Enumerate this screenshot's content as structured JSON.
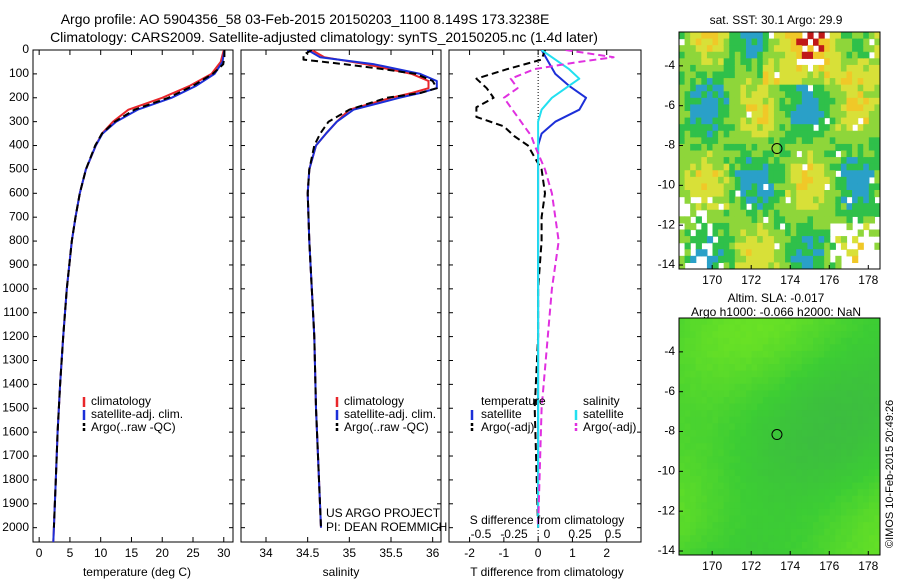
{
  "header": {
    "title_line1": "Argo profile: AO 5904356_58 03-Feb-2015 20150203_1100 8.149S 173.3238E",
    "title_line2": "Climatology: CARS2009. Satellite-adjusted climatology: synTS_20150205.nc (1.4d later)"
  },
  "colors": {
    "climatology": "#e8262a",
    "satellite": "#1c2fd8",
    "argo": "#000000",
    "satellite_salinity": "#22e0f0",
    "argo_salinity": "#e030e0"
  },
  "chart_data": [
    {
      "type": "line",
      "name": "temperature_profile",
      "xlabel": "temperature (deg C)",
      "xlim": [
        -1,
        31.5
      ],
      "ylim": [
        2060,
        0
      ],
      "xticks": [
        0,
        5,
        10,
        15,
        20,
        25,
        30
      ],
      "yticks": [
        0,
        100,
        200,
        300,
        400,
        500,
        600,
        700,
        800,
        900,
        1000,
        1100,
        1200,
        1300,
        1400,
        1500,
        1600,
        1700,
        1800,
        1900,
        2000
      ],
      "legend": [
        "climatology",
        "satellite-adj. clim.",
        "Argo(..raw -QC)"
      ],
      "series": [
        {
          "name": "climatology",
          "depth": [
            0,
            50,
            100,
            150,
            200,
            250,
            300,
            350,
            400,
            500,
            600,
            700,
            800,
            1000,
            1200,
            1400,
            1600,
            1800,
            2000,
            2060
          ],
          "values": [
            30,
            29.5,
            28,
            24.5,
            20,
            14.5,
            12,
            10.2,
            9.2,
            7.6,
            6.6,
            5.9,
            5.3,
            4.5,
            3.9,
            3.4,
            3,
            2.7,
            2.4,
            2.3
          ]
        },
        {
          "name": "satellite-adj. clim.",
          "depth": [
            0,
            50,
            100,
            150,
            200,
            250,
            300,
            350,
            400,
            500,
            600,
            700,
            800,
            1000,
            1200,
            1400,
            1600,
            1800,
            2000,
            2060
          ],
          "values": [
            30.1,
            29.8,
            28.5,
            25.5,
            21.5,
            16,
            12.5,
            10.3,
            9.2,
            7.6,
            6.6,
            5.9,
            5.3,
            4.5,
            3.9,
            3.4,
            3,
            2.7,
            2.4,
            2.3
          ]
        },
        {
          "name": "Argo(..raw -QC)",
          "depth": [
            0,
            30,
            60,
            100,
            150,
            200,
            250,
            300,
            350,
            400,
            500,
            600,
            700,
            800,
            1000,
            1200,
            1400,
            1600,
            1800,
            2000
          ],
          "values": [
            30.1,
            30.1,
            29.9,
            28.2,
            25,
            21,
            15.5,
            12.3,
            10.2,
            9.1,
            7.6,
            6.6,
            5.9,
            5.3,
            4.5,
            3.9,
            3.4,
            3,
            2.7,
            2.4
          ]
        }
      ]
    },
    {
      "type": "line",
      "name": "salinity_profile",
      "xlabel": "salinity",
      "xlim": [
        33.7,
        36.1
      ],
      "ylim": [
        2060,
        0
      ],
      "xticks": [
        34,
        34.5,
        35,
        35.5,
        36
      ],
      "legend": [
        "climatology",
        "satellite-adj. clim.",
        "Argo(..raw -QC)"
      ],
      "annotation": [
        "US ARGO PROJECT",
        "PI: DEAN ROEMMICH"
      ],
      "series": [
        {
          "name": "climatology",
          "depth": [
            0,
            30,
            60,
            100,
            130,
            160,
            180,
            200,
            250,
            300,
            350,
            400,
            500,
            600,
            800,
            1000,
            1200,
            1500,
            2000
          ],
          "values": [
            34.55,
            34.7,
            35.2,
            35.75,
            35.95,
            35.95,
            35.75,
            35.5,
            35.0,
            34.85,
            34.72,
            34.6,
            34.52,
            34.5,
            34.52,
            34.55,
            34.58,
            34.6,
            34.66
          ]
        },
        {
          "name": "satellite-adj. clim.",
          "depth": [
            0,
            30,
            60,
            100,
            130,
            160,
            180,
            200,
            250,
            300,
            350,
            400,
            500,
            600,
            800,
            1000,
            1200,
            1500,
            2000
          ],
          "values": [
            34.5,
            34.65,
            35.3,
            35.85,
            36.05,
            36.05,
            35.85,
            35.6,
            35.05,
            34.85,
            34.72,
            34.6,
            34.52,
            34.5,
            34.52,
            34.55,
            34.58,
            34.6,
            34.66
          ]
        },
        {
          "name": "Argo(..raw -QC)",
          "depth": [
            0,
            20,
            40,
            60,
            80,
            100,
            130,
            160,
            180,
            200,
            250,
            300,
            350,
            400,
            500,
            600,
            800,
            1000,
            1200,
            1500,
            2000
          ],
          "values": [
            34.55,
            34.45,
            34.45,
            34.95,
            35.4,
            35.8,
            36.0,
            36.05,
            35.85,
            35.45,
            35.0,
            34.75,
            34.65,
            34.58,
            34.52,
            34.5,
            34.52,
            34.55,
            34.58,
            34.6,
            34.66
          ]
        }
      ]
    },
    {
      "type": "line",
      "name": "difference_profile",
      "xlabel": "T difference from climatology",
      "top_axis_label": "S difference from climatology",
      "xlim": [
        -2.6,
        3
      ],
      "ylim": [
        2060,
        0
      ],
      "xticks": [
        -2,
        -1,
        0,
        1,
        2
      ],
      "top_ticks": [
        "-0.5",
        "-0.25",
        "0",
        "0.25",
        "0.5"
      ],
      "legend_headers": [
        "temperature",
        "salinity"
      ],
      "legend": [
        "satellite",
        "Argo(-adj)",
        "satellite",
        "Argo(-adj)"
      ],
      "series": [
        {
          "name": "temperature satellite",
          "depth": [
            0,
            50,
            100,
            150,
            200,
            250,
            300,
            350,
            400,
            500,
            600,
            800,
            1000,
            1500,
            2000
          ],
          "values": [
            0.1,
            0.3,
            0.5,
            0.9,
            1.4,
            1.2,
            0.5,
            0.1,
            0.0,
            0.0,
            0.0,
            0.0,
            0.0,
            0.0,
            0.0
          ]
        },
        {
          "name": "temperature Argo(-adj)",
          "depth": [
            0,
            40,
            80,
            120,
            160,
            200,
            240,
            280,
            320,
            360,
            400,
            450,
            500,
            600,
            700,
            800,
            1000,
            1200,
            1500,
            2000
          ],
          "values": [
            0.2,
            0.1,
            -0.9,
            -1.8,
            -1.5,
            -1.3,
            -1.8,
            -1.8,
            -1.0,
            -0.7,
            -0.3,
            -0.1,
            0.1,
            0.2,
            0.1,
            0.1,
            0.0,
            0.0,
            -0.1,
            0.0
          ]
        },
        {
          "name": "salinity satellite",
          "depth": [
            0,
            40,
            80,
            120,
            160,
            200,
            250,
            300,
            400,
            500,
            800,
            1000,
            1500,
            2000
          ],
          "values": [
            0.1,
            0.5,
            0.9,
            1.2,
            0.8,
            0.4,
            0.1,
            0.0,
            0.0,
            0.0,
            0.0,
            0.0,
            0.0,
            0.0
          ]
        },
        {
          "name": "salinity Argo(-adj)",
          "depth": [
            0,
            30,
            50,
            80,
            120,
            160,
            200,
            240,
            280,
            320,
            360,
            400,
            500,
            600,
            700,
            800,
            900,
            1000,
            1500,
            2000
          ],
          "values": [
            0.8,
            2.2,
            1.2,
            -0.1,
            -0.8,
            -0.6,
            -1.0,
            -0.8,
            -0.6,
            -0.4,
            -0.2,
            -0.1,
            0.2,
            0.4,
            0.5,
            0.6,
            0.5,
            0.4,
            0.1,
            0.0
          ]
        }
      ]
    },
    {
      "type": "heatmap",
      "name": "sst_map",
      "title": "sat. SST: 30.1 Argo: 29.9",
      "xlim": [
        168.3,
        178.6
      ],
      "ylim": [
        -14.2,
        -2.3
      ],
      "xticks": [
        170,
        172,
        174,
        176,
        178
      ],
      "yticks": [
        -4,
        -6,
        -8,
        -10,
        -12,
        -14
      ],
      "argo_position": {
        "lon": 173.32,
        "lat": -8.15
      }
    },
    {
      "type": "heatmap",
      "name": "sla_map",
      "title_line1": "Altim. SLA: -0.017",
      "title_line2": "Argo h1000: -0.066 h2000: NaN",
      "xlim": [
        168.3,
        178.6
      ],
      "ylim": [
        -14.2,
        -2.3
      ],
      "xticks": [
        170,
        172,
        174,
        176,
        178
      ],
      "yticks": [
        -4,
        -6,
        -8,
        -10,
        -12,
        -14
      ],
      "argo_position": {
        "lon": 173.32,
        "lat": -8.15
      }
    }
  ],
  "footer": {
    "credit": "©IMOS 10-Feb-2015 20:49:26"
  }
}
